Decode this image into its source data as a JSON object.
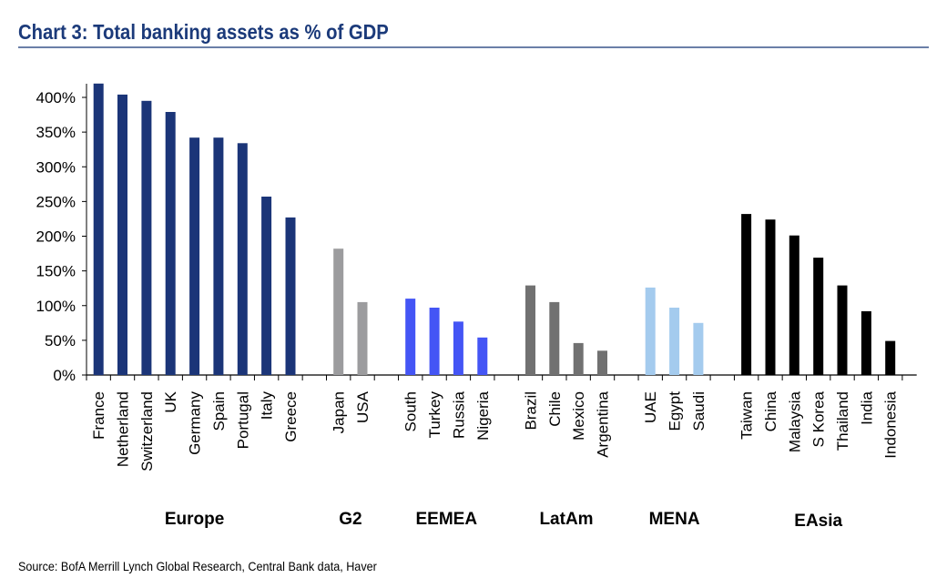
{
  "title": "Chart 3: Total banking assets as % of GDP",
  "source": "Source: BofA Merrill Lynch Global Research, Central Bank data, Haver",
  "chart_data": {
    "type": "bar",
    "title": "Chart 3: Total banking assets as % of GDP",
    "xlabel": "",
    "ylabel": "",
    "ylim": [
      0,
      400
    ],
    "yticks": [
      0,
      50,
      100,
      150,
      200,
      250,
      300,
      350,
      400
    ],
    "ytick_labels": [
      "0%",
      "50%",
      "100%",
      "150%",
      "200%",
      "250%",
      "300%",
      "350%",
      "400%"
    ],
    "grid": false,
    "legend": "none",
    "groups": [
      {
        "name": "Europe",
        "color": "#1b3578",
        "categories": [
          "France",
          "Netherland",
          "Switzerland",
          "UK",
          "Germany",
          "Spain",
          "Portugal",
          "Italy",
          "Greece"
        ],
        "values": [
          420,
          404,
          395,
          379,
          342,
          342,
          334,
          257,
          227
        ]
      },
      {
        "name": "G2",
        "color": "#9c9c9e",
        "categories": [
          "Japan",
          "USA"
        ],
        "values": [
          182,
          105
        ]
      },
      {
        "name": "EEMEA",
        "color": "#4455f5",
        "categories": [
          "South",
          "Turkey",
          "Russia",
          "Nigeria"
        ],
        "values": [
          110,
          97,
          77,
          54
        ]
      },
      {
        "name": "LatAm",
        "color": "#717171",
        "categories": [
          "Brazil",
          "Chile",
          "Mexico",
          "Argentina"
        ],
        "values": [
          129,
          105,
          46,
          35
        ]
      },
      {
        "name": "MENA",
        "color": "#a4cbee",
        "categories": [
          "UAE",
          "Egypt",
          "Saudi"
        ],
        "values": [
          126,
          97,
          75
        ]
      },
      {
        "name": "EAsia",
        "color": "#000000",
        "categories": [
          "Taiwan",
          "China",
          "Malaysia",
          "S Korea",
          "Thailand",
          "India",
          "Indonesia"
        ],
        "values": [
          232,
          224,
          201,
          169,
          129,
          92,
          49
        ]
      }
    ]
  }
}
